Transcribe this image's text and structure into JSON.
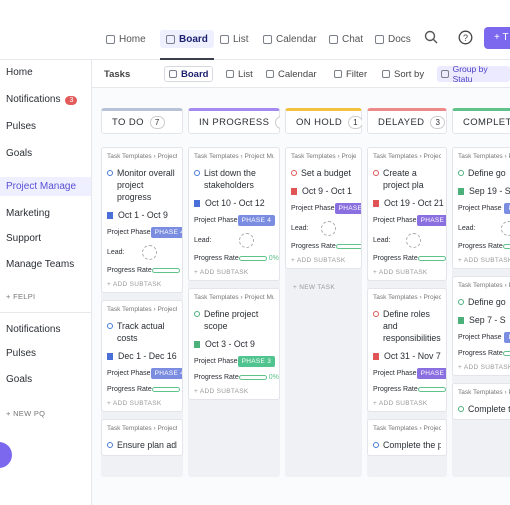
{
  "nav": {
    "tabs": [
      "Home",
      "Board",
      "List",
      "Calendar",
      "Chat",
      "Docs"
    ],
    "active": "Board",
    "button": "+ T"
  },
  "sidebar": {
    "items": [
      "Home",
      "Notifications",
      "Pulses",
      "Goals",
      "Project Manage",
      "Marketing",
      "Support",
      "Manage Teams"
    ],
    "badge": "3",
    "active": "Project Manage",
    "workspace": "+ FELPI",
    "items2": [
      "Notifications",
      "Pulses",
      "Goals"
    ],
    "new": "+ NEW PQ"
  },
  "toolbar": {
    "view": "Tasks",
    "items": [
      "Board",
      "List",
      "Calendar",
      "Filter",
      "Sort by",
      "Group by Statu"
    ]
  },
  "columns": [
    {
      "name": "TO DO",
      "count": "7",
      "color": "#b9c3d8",
      "cards": [
        {
          "crumb": "Task Templates › Project ...",
          "title": "Monitor overall project progress",
          "dates": "Oct 1 - Oct 9",
          "flag": "#4a6fd8",
          "phase_label": "Project Phase",
          "phase": "PHASE 4",
          "phase_color": "#7b8de0",
          "lead_label": "Lead:",
          "progress_label": "Progress Rate",
          "progress": "0%",
          "add": "+ ADD SUBTASK"
        },
        {
          "crumb": "Task Templates › Project ...",
          "title": "Track actual costs",
          "dates": "Dec 1 - Dec 16",
          "flag": "#4a6fd8",
          "phase_label": "Project Phase",
          "phase": "PHASE 4",
          "phase_color": "#7b8de0",
          "progress_label": "Progress Rate",
          "progress": "0%",
          "add": "+ ADD SUBTASK"
        },
        {
          "crumb": "Task Templates › Project ...",
          "title": "Ensure plan adheren"
        }
      ]
    },
    {
      "name": "IN PROGRESS",
      "count": "5",
      "color": "#a58bf0",
      "cards": [
        {
          "crumb": "Task Templates › Project Mu...",
          "title": "List down the stakeholders",
          "dates": "Oct 10 - Oct 12",
          "flag": "#4a6fd8",
          "phase_label": "Project Phase",
          "phase": "PHASE 4",
          "phase_color": "#7b8de0",
          "lead_label": "Lead:",
          "progress_label": "Progress Rate",
          "progress": "0%",
          "add": "+ ADD SUBTASK"
        },
        {
          "crumb": "Task Templates › Project Mu...",
          "title": "Define project scope",
          "dates": "Oct 3 - Oct 9",
          "flag": "#4bb07a",
          "phase_label": "Project Phase",
          "phase": "PHASE 3",
          "phase_color": "#4fc48e",
          "progress_label": "Progress Rate",
          "progress": "0%",
          "add": "+ ADD SUBTASK"
        }
      ]
    },
    {
      "name": "ON HOLD",
      "count": "1",
      "color": "#f2c23e",
      "new_task": "+ NEW TASK",
      "cards": [
        {
          "crumb": "Task Templates › Project ...",
          "title": "Set a budget",
          "dates": "Oct 9 - Oct 1",
          "flag": "#e05555",
          "phase_label": "Project Phase",
          "phase": "PHASE 2",
          "phase_color": "#8a6fe0",
          "lead_label": "Lead:",
          "progress_label": "Progress Rate",
          "progress": "0%",
          "add": "+ ADD SUBTASK"
        }
      ]
    },
    {
      "name": "DELAYED",
      "count": "3",
      "color": "#ef8a8a",
      "cards": [
        {
          "crumb": "Task Templates › Project ...",
          "title": "Create a project pla",
          "dates": "Oct 19 - Oct 21",
          "flag": "#e05555",
          "phase_label": "Project Phase",
          "phase": "PHASE 2",
          "phase_color": "#8a6fe0",
          "lead_label": "Lead:",
          "progress_label": "Progress Rate",
          "progress": "0%",
          "add": "+ ADD SUBTASK"
        },
        {
          "crumb": "Task Templates › Project ...",
          "title": "Define roles and responsibilities",
          "dates": "Oct 31 - Nov 7",
          "flag": "#e05555",
          "phase_label": "Project Phase",
          "phase": "PHASE 2",
          "phase_color": "#8a6fe0",
          "progress_label": "Progress Rate",
          "progress": "0%",
          "add": "+ ADD SUBTASK"
        },
        {
          "crumb": "Task Templates › Project ...",
          "title": "Complete the project"
        }
      ]
    },
    {
      "name": "COMPLET",
      "color": "#5ec28a",
      "cards": [
        {
          "crumb": "Task Templates › Project ...",
          "title": "Define go",
          "dates": "Sep 19 - S",
          "flag": "#4bb07a",
          "phase_label": "Project Phase",
          "phase": "PHASE",
          "phase_color": "#7b8de0",
          "lead_label": "Lead:",
          "progress_label": "Progress Rate",
          "progress": "0%",
          "add": "+ ADD SUBTASK"
        },
        {
          "crumb": "Task Templates › Project ...",
          "title": "Define go",
          "dates": "Sep 7 - S",
          "flag": "#4bb07a",
          "phase_label": "Project Phase",
          "phase": "PHASE",
          "phase_color": "#7b8de0",
          "progress_label": "Progress Rate",
          "progress": "0%",
          "add": "+ ADD SUBTASK"
        },
        {
          "crumb": "Task Templates › Project ...",
          "title": "Complete th"
        }
      ]
    }
  ]
}
